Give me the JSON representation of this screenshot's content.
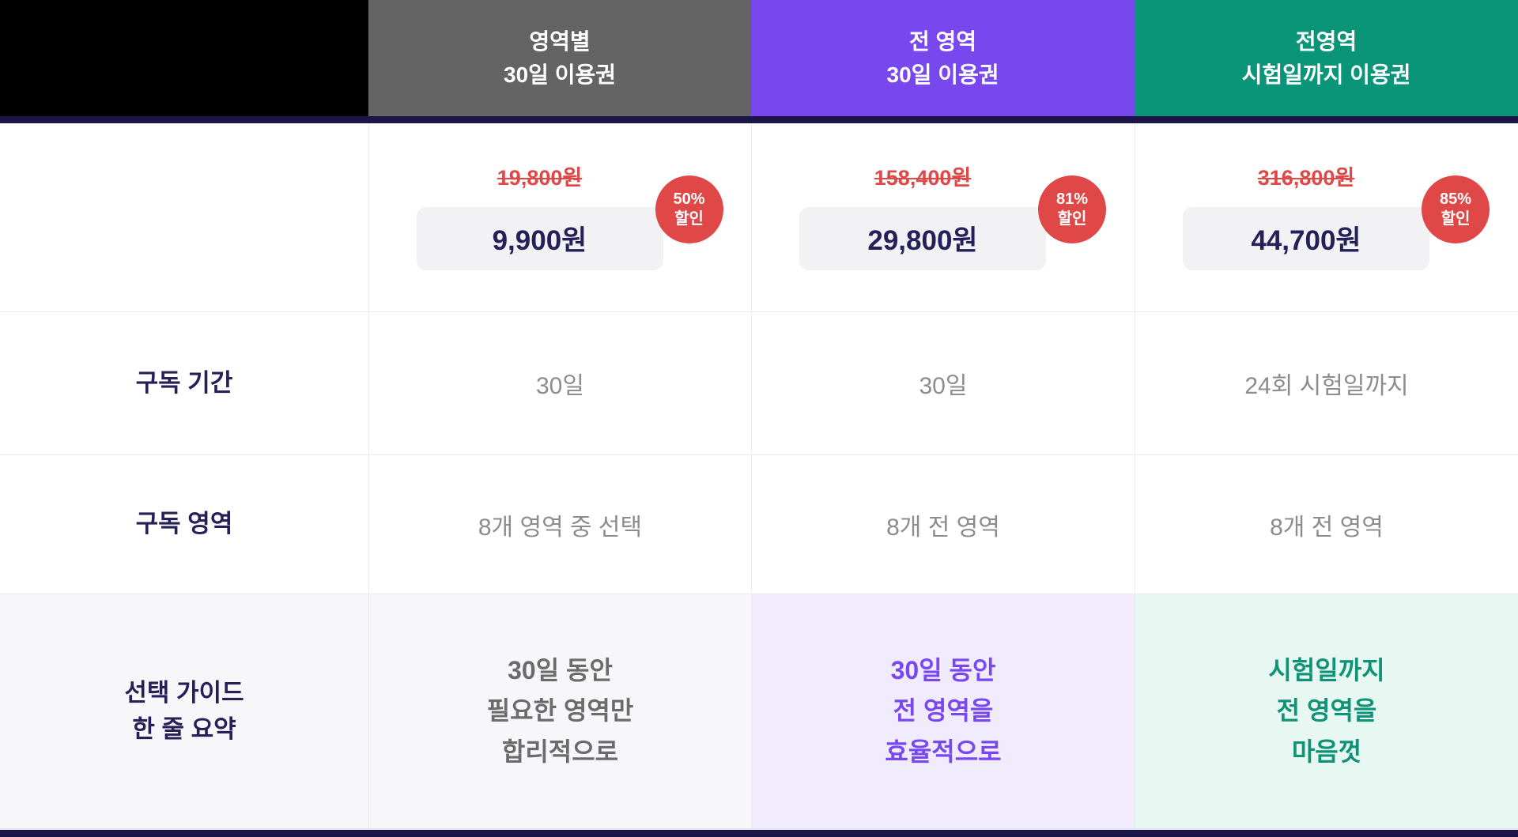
{
  "colors": {
    "navy_bar": "#1B1548",
    "text_navy": "#262058",
    "value_gray": "#8C8C8C",
    "discount_red": "#E04848",
    "price_box_bg": "#F2F2F5",
    "label_col_bg": "#F7F7F9",
    "border": "#EBEBEE",
    "header_black": "#000000"
  },
  "row_labels": {
    "duration": "구독 기간",
    "area": "구독 영역",
    "guide": [
      "선택 가이드",
      "한 줄 요약"
    ],
    "guide_bg": "#F7F7F9"
  },
  "plans": [
    {
      "name": [
        "영역별",
        "30일 이용권"
      ],
      "header_bg": "#646464",
      "original_price": "19,800원",
      "discount": [
        "50%",
        "할인"
      ],
      "price": "9,900원",
      "duration": "30일",
      "area": "8개 영역 중 선택",
      "guide": [
        "30일 동안",
        "필요한 영역만",
        "합리적으로"
      ],
      "guide_bg": "#F7F7F9",
      "guide_color": "#6B6B6B"
    },
    {
      "name": [
        "전 영역",
        "30일 이용권"
      ],
      "header_bg": "#7847EE",
      "original_price": "158,400원",
      "discount": [
        "81%",
        "할인"
      ],
      "price": "29,800원",
      "duration": "30일",
      "area": "8개 전 영역",
      "guide": [
        "30일 동안",
        "전 영역을",
        "효율적으로"
      ],
      "guide_bg": "#F1ECFD",
      "guide_color": "#7847EE"
    },
    {
      "name": [
        "전영역",
        "시험일까지 이용권"
      ],
      "header_bg": "#0A9478",
      "original_price": "316,800원",
      "discount": [
        "85%",
        "할인"
      ],
      "price": "44,700원",
      "duration": "24회 시험일까지",
      "area": "8개 전 영역",
      "guide": [
        "시험일까지",
        "전 영역을",
        "마음껏"
      ],
      "guide_bg": "#E7F8F2",
      "guide_color": "#0F9277"
    }
  ]
}
